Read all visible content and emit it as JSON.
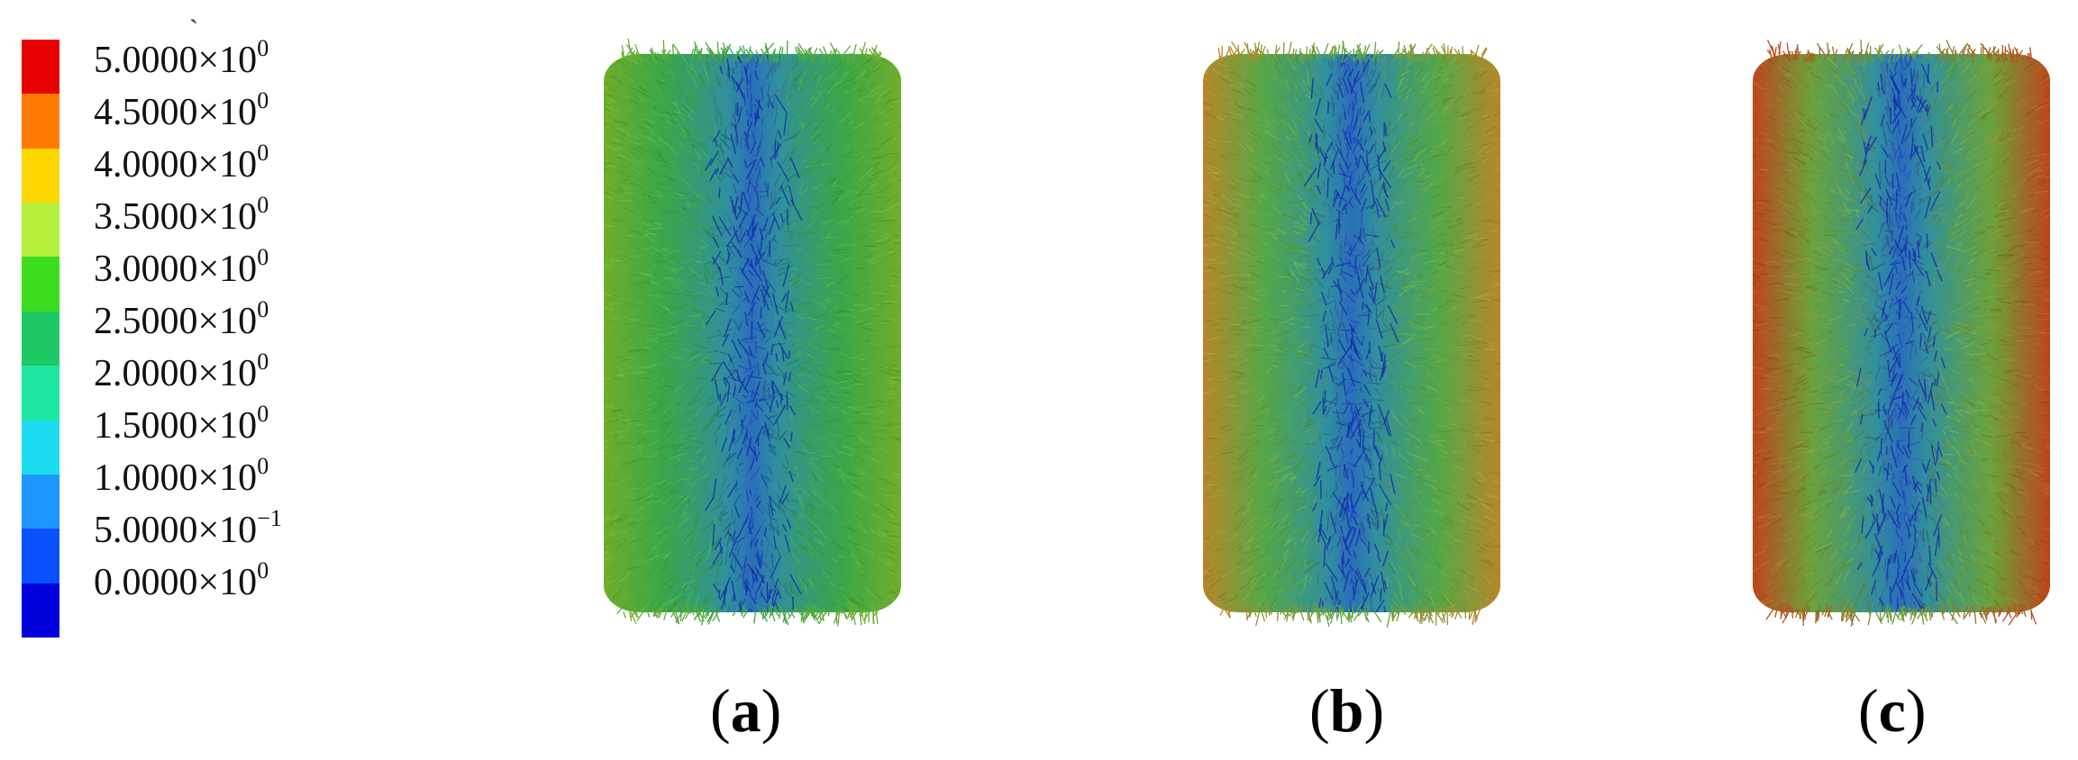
{
  "legend": {
    "colors": [
      "#e60000",
      "#ff7a00",
      "#ffd700",
      "#b4f03c",
      "#3cdc1e",
      "#1ec864",
      "#1ee6a0",
      "#1edcf0",
      "#1e96ff",
      "#0a50ff",
      "#0000dc"
    ],
    "labels": [
      {
        "mantissa": "5.0000",
        "exponent": "0"
      },
      {
        "mantissa": "4.5000",
        "exponent": "0"
      },
      {
        "mantissa": "4.0000",
        "exponent": "0"
      },
      {
        "mantissa": "3.5000",
        "exponent": "0"
      },
      {
        "mantissa": "3.0000",
        "exponent": "0"
      },
      {
        "mantissa": "2.5000",
        "exponent": "0"
      },
      {
        "mantissa": "2.0000",
        "exponent": "0"
      },
      {
        "mantissa": "1.5000",
        "exponent": "0"
      },
      {
        "mantissa": "1.0000",
        "exponent": "0"
      },
      {
        "mantissa": "5.0000",
        "exponent": "−1"
      },
      {
        "mantissa": "0.0000",
        "exponent": "0"
      }
    ],
    "times_sign": "×10"
  },
  "panels": [
    {
      "id": "a",
      "label_open": "(",
      "label_letter": "a",
      "label_close": ")",
      "edge_color": "#6fae2a",
      "mid_color": "#3aa64a"
    },
    {
      "id": "b",
      "label_open": "(",
      "label_letter": "b",
      "label_close": ")",
      "edge_color": "#b8862a",
      "mid_color": "#55a845"
    },
    {
      "id": "c",
      "label_open": "(",
      "label_letter": "c",
      "label_close": ")",
      "edge_color": "#c0441c",
      "mid_color": "#68a43c"
    }
  ],
  "accent_mark": "`"
}
